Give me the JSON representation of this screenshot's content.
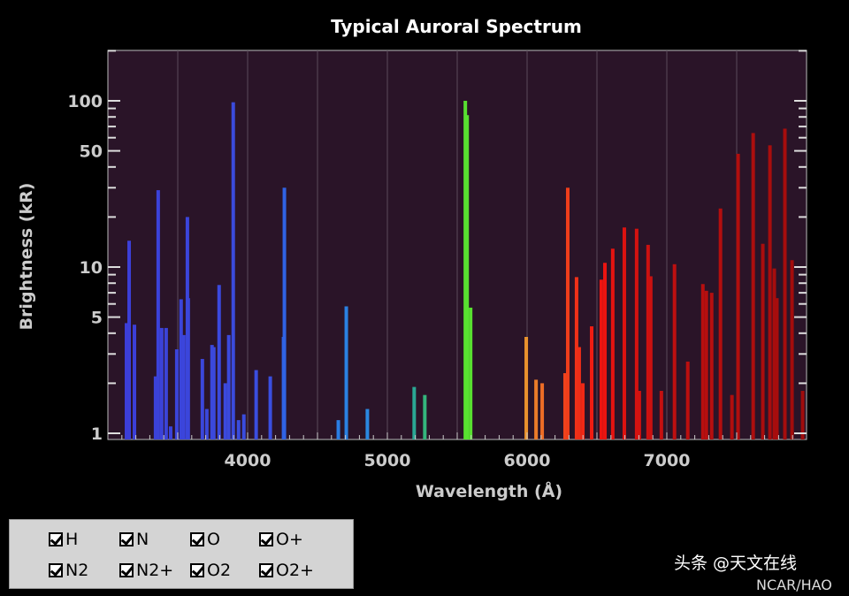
{
  "chart_data": {
    "type": "bar",
    "title": "Typical Auroral Spectrum",
    "xlabel": "Wavelength (Å)",
    "ylabel": "Brightness (kR)",
    "xlim": [
      3000,
      8000
    ],
    "ylim": [
      1,
      200
    ],
    "yscale": "log",
    "xticks": [
      4000,
      5000,
      6000,
      7000
    ],
    "yticks": [
      1,
      5,
      10,
      50,
      100
    ],
    "grid": "vertical every 500 Å",
    "lines": [
      [
        3133,
        4.6
      ],
      [
        3152,
        14.4
      ],
      [
        3190,
        4.5
      ],
      [
        3341,
        2.2
      ],
      [
        3360,
        29
      ],
      [
        3385,
        4.3
      ],
      [
        3417,
        4.3
      ],
      [
        3449,
        1.1
      ],
      [
        3493,
        3.2
      ],
      [
        3524,
        6.4
      ],
      [
        3543,
        3.9
      ],
      [
        3569,
        20
      ],
      [
        3575,
        6.5
      ],
      [
        3676,
        2.8
      ],
      [
        3708,
        1.4
      ],
      [
        3745,
        3.4
      ],
      [
        3758,
        3.3
      ],
      [
        3796,
        7.8
      ],
      [
        3840,
        2.0
      ],
      [
        3865,
        3.9
      ],
      [
        3897,
        98
      ],
      [
        3935,
        1.2
      ],
      [
        3973,
        1.3
      ],
      [
        4061,
        2.4
      ],
      [
        4162,
        2.2
      ],
      [
        4257,
        3.8
      ],
      [
        4263,
        30
      ],
      [
        4649,
        1.2
      ],
      [
        4706,
        5.8
      ],
      [
        4857,
        1.4
      ],
      [
        5192,
        1.9
      ],
      [
        5268,
        1.7
      ],
      [
        5558,
        100
      ],
      [
        5571,
        82
      ],
      [
        5596,
        5.7
      ],
      [
        5994,
        3.8
      ],
      [
        6064,
        2.1
      ],
      [
        6108,
        2.0
      ],
      [
        6272,
        2.3
      ],
      [
        6291,
        30
      ],
      [
        6354,
        8.7
      ],
      [
        6373,
        3.3
      ],
      [
        6399,
        2.0
      ],
      [
        6462,
        4.4
      ],
      [
        6531,
        8.4
      ],
      [
        6557,
        10.6
      ],
      [
        6613,
        12.9
      ],
      [
        6696,
        17.3
      ],
      [
        6784,
        17
      ],
      [
        6803,
        1.8
      ],
      [
        6866,
        13.6
      ],
      [
        6885,
        8.8
      ],
      [
        6961,
        1.8
      ],
      [
        7055,
        10.4
      ],
      [
        7150,
        2.7
      ],
      [
        7258,
        7.9
      ],
      [
        7283,
        7.2
      ],
      [
        7321,
        7.0
      ],
      [
        7384,
        22.5
      ],
      [
        7466,
        1.7
      ],
      [
        7510,
        48
      ],
      [
        7618,
        64
      ],
      [
        7687,
        13.8
      ],
      [
        7738,
        54
      ],
      [
        7769,
        9.8
      ],
      [
        7788,
        6.5
      ],
      [
        7845,
        68
      ],
      [
        7896,
        11
      ],
      [
        7972,
        1.8
      ]
    ],
    "color_stops": [
      [
        3000,
        "#3c3cd6"
      ],
      [
        4200,
        "#3a50e0"
      ],
      [
        4300,
        "#2a6ee6"
      ],
      [
        4900,
        "#2a8ae0"
      ],
      [
        5200,
        "#2aa892"
      ],
      [
        5500,
        "#58e030"
      ],
      [
        5650,
        "#58e030"
      ],
      [
        5950,
        "#e8a030"
      ],
      [
        6200,
        "#f05020"
      ],
      [
        6500,
        "#f01410"
      ],
      [
        7000,
        "#c01010"
      ],
      [
        8000,
        "#a00c0c"
      ]
    ]
  },
  "legend": {
    "items": [
      "H",
      "N",
      "O",
      "O+",
      "N2",
      "N2+",
      "O2",
      "O2+"
    ]
  },
  "watermark": {
    "source": "头条 @天文在线",
    "credit": "NCAR/HAO"
  }
}
